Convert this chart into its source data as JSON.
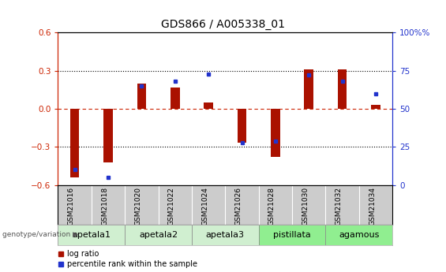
{
  "title": "GDS866 / A005338_01",
  "samples": [
    "GSM21016",
    "GSM21018",
    "GSM21020",
    "GSM21022",
    "GSM21024",
    "GSM21026",
    "GSM21028",
    "GSM21030",
    "GSM21032",
    "GSM21034"
  ],
  "log_ratio": [
    -0.54,
    -0.42,
    0.2,
    0.17,
    0.05,
    -0.27,
    -0.38,
    0.31,
    0.31,
    0.03
  ],
  "pct_rank_raw": [
    10,
    5,
    65,
    68,
    73,
    28,
    29,
    72,
    68,
    60
  ],
  "groups": [
    {
      "label": "apetala1",
      "samples": [
        0,
        1
      ],
      "color": "#d0efd0"
    },
    {
      "label": "apetala2",
      "samples": [
        2,
        3
      ],
      "color": "#d0efd0"
    },
    {
      "label": "apetala3",
      "samples": [
        4,
        5
      ],
      "color": "#d0efd0"
    },
    {
      "label": "pistillata",
      "samples": [
        6,
        7
      ],
      "color": "#90ee90"
    },
    {
      "label": "agamous",
      "samples": [
        8,
        9
      ],
      "color": "#90ee90"
    }
  ],
  "ylim_left": [
    -0.6,
    0.6
  ],
  "yticks_left": [
    -0.6,
    -0.3,
    0.0,
    0.3,
    0.6
  ],
  "ylim_right": [
    0,
    100
  ],
  "yticks_right": [
    0,
    25,
    50,
    75,
    100
  ],
  "bar_color": "#aa1100",
  "dot_color": "#2233cc",
  "left_tick_color": "#cc2200",
  "right_tick_color": "#2233cc",
  "background_color": "#ffffff",
  "bar_width": 0.5,
  "title_fontsize": 10,
  "tick_fontsize": 7.5,
  "sample_fontsize": 6.5,
  "group_fontsize": 8,
  "legend_fontsize": 7
}
